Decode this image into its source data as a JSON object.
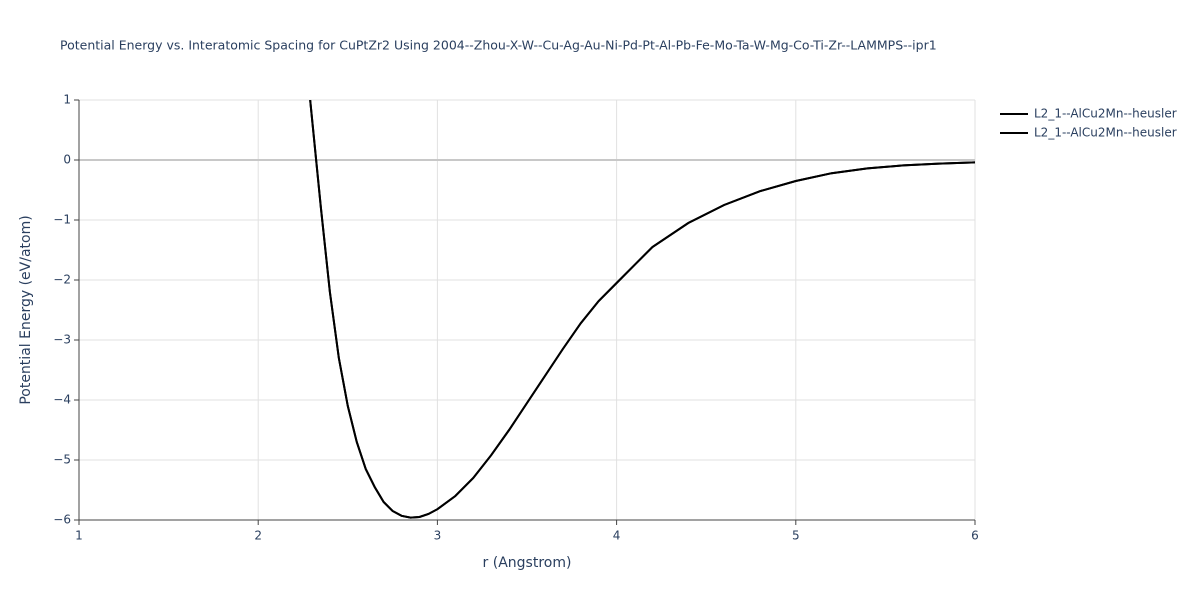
{
  "chart_data": {
    "type": "line",
    "title": "Potential Energy vs. Interatomic Spacing for CuPtZr2 Using 2004--Zhou-X-W--Cu-Ag-Au-Ni-Pd-Pt-Al-Pb-Fe-Mo-Ta-W-Mg-Co-Ti-Zr--LAMMPS--ipr1",
    "x_label": "r (Angstrom)",
    "y_label": "Potential Energy (eV/atom)",
    "x": [
      2.29,
      2.35,
      2.4,
      2.45,
      2.5,
      2.55,
      2.6,
      2.65,
      2.7,
      2.75,
      2.8,
      2.85,
      2.9,
      2.95,
      3.0,
      3.1,
      3.2,
      3.3,
      3.4,
      3.5,
      3.6,
      3.7,
      3.8,
      3.9,
      4.0,
      4.2,
      4.4,
      4.6,
      4.8,
      5.0,
      5.2,
      5.4,
      5.6,
      5.8,
      6.0
    ],
    "series": [
      {
        "name": "L2_1--AlCu2Mn--heusler",
        "color": "#000000",
        "values": [
          1.0,
          -0.8,
          -2.2,
          -3.3,
          -4.1,
          -4.7,
          -5.15,
          -5.45,
          -5.7,
          -5.85,
          -5.93,
          -5.96,
          -5.95,
          -5.9,
          -5.82,
          -5.6,
          -5.3,
          -4.92,
          -4.5,
          -4.05,
          -3.6,
          -3.15,
          -2.72,
          -2.35,
          -2.05,
          -1.45,
          -1.05,
          -0.75,
          -0.52,
          -0.35,
          -0.22,
          -0.14,
          -0.09,
          -0.06,
          -0.04
        ]
      },
      {
        "name": "L2_1--AlCu2Mn--heusler",
        "color": "#000000",
        "values": [
          1.0,
          -0.8,
          -2.2,
          -3.3,
          -4.1,
          -4.7,
          -5.15,
          -5.45,
          -5.7,
          -5.85,
          -5.93,
          -5.96,
          -5.95,
          -5.9,
          -5.82,
          -5.6,
          -5.3,
          -4.92,
          -4.5,
          -4.05,
          -3.6,
          -3.15,
          -2.72,
          -2.35,
          -2.05,
          -1.45,
          -1.05,
          -0.75,
          -0.52,
          -0.35,
          -0.22,
          -0.14,
          -0.09,
          -0.06,
          -0.04
        ]
      }
    ],
    "xlim": [
      1,
      6
    ],
    "xticks": [
      1,
      2,
      3,
      4,
      5,
      6
    ],
    "ylim": [
      -6,
      1
    ],
    "yticks": [
      {
        "value": -6,
        "label": "−6"
      },
      {
        "value": -5,
        "label": "−5"
      },
      {
        "value": -4,
        "label": "−4"
      },
      {
        "value": -3,
        "label": "−3"
      },
      {
        "value": -2,
        "label": "−2"
      },
      {
        "value": -1,
        "label": "−1"
      },
      0,
      1
    ],
    "grid": true,
    "legend": "right"
  }
}
